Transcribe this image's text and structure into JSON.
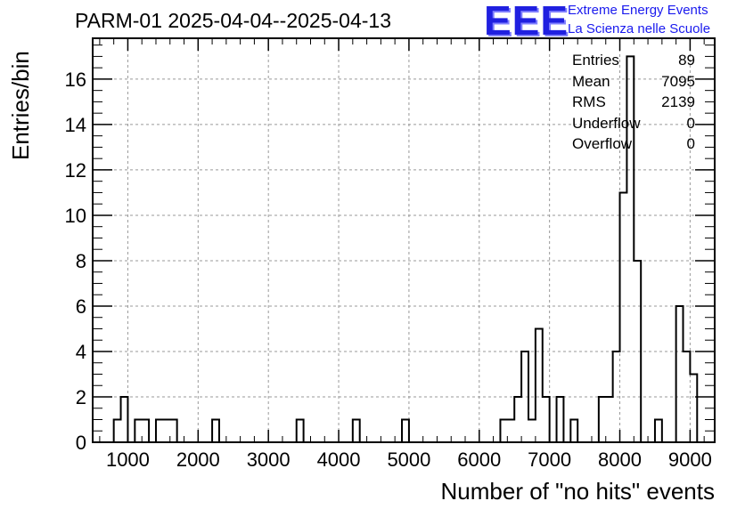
{
  "title": "PARM-01 2025-04-04--2025-04-13",
  "logo": {
    "mark": "EEE",
    "line1": "Extreme Energy Events",
    "line2": "La Scienza nelle Scuole",
    "color": "#1a1aee"
  },
  "stats": [
    {
      "label": "Entries",
      "value": "89"
    },
    {
      "label": "Mean",
      "value": "7095"
    },
    {
      "label": "RMS",
      "value": "2139"
    },
    {
      "label": "Underflow",
      "value": "0"
    },
    {
      "label": "Overflow",
      "value": "0"
    }
  ],
  "chart_data": {
    "type": "histogram",
    "xlabel": "Number of \"no hits\" events",
    "ylabel": "Entries/bin",
    "xlim": [
      500,
      9350
    ],
    "ylim": [
      0,
      17.8
    ],
    "xticks": [
      1000,
      2000,
      3000,
      4000,
      5000,
      6000,
      7000,
      8000,
      9000
    ],
    "yticks": [
      0,
      2,
      4,
      6,
      8,
      10,
      12,
      14,
      16
    ],
    "grid": true,
    "bin_width": 100,
    "bins": [
      {
        "x": 800,
        "count": 1
      },
      {
        "x": 900,
        "count": 2
      },
      {
        "x": 1100,
        "count": 1
      },
      {
        "x": 1200,
        "count": 1
      },
      {
        "x": 1400,
        "count": 1
      },
      {
        "x": 1500,
        "count": 1
      },
      {
        "x": 1600,
        "count": 1
      },
      {
        "x": 2200,
        "count": 1
      },
      {
        "x": 3400,
        "count": 1
      },
      {
        "x": 4200,
        "count": 1
      },
      {
        "x": 4900,
        "count": 1
      },
      {
        "x": 6300,
        "count": 1
      },
      {
        "x": 6400,
        "count": 1
      },
      {
        "x": 6500,
        "count": 2
      },
      {
        "x": 6600,
        "count": 4
      },
      {
        "x": 6700,
        "count": 1
      },
      {
        "x": 6800,
        "count": 5
      },
      {
        "x": 6900,
        "count": 2
      },
      {
        "x": 7100,
        "count": 2
      },
      {
        "x": 7300,
        "count": 1
      },
      {
        "x": 7700,
        "count": 2
      },
      {
        "x": 7800,
        "count": 2
      },
      {
        "x": 7900,
        "count": 4
      },
      {
        "x": 8000,
        "count": 11
      },
      {
        "x": 8100,
        "count": 17
      },
      {
        "x": 8200,
        "count": 8
      },
      {
        "x": 8500,
        "count": 1
      },
      {
        "x": 8800,
        "count": 6
      },
      {
        "x": 8900,
        "count": 4
      },
      {
        "x": 9000,
        "count": 3
      }
    ],
    "line_color": "#000000"
  }
}
